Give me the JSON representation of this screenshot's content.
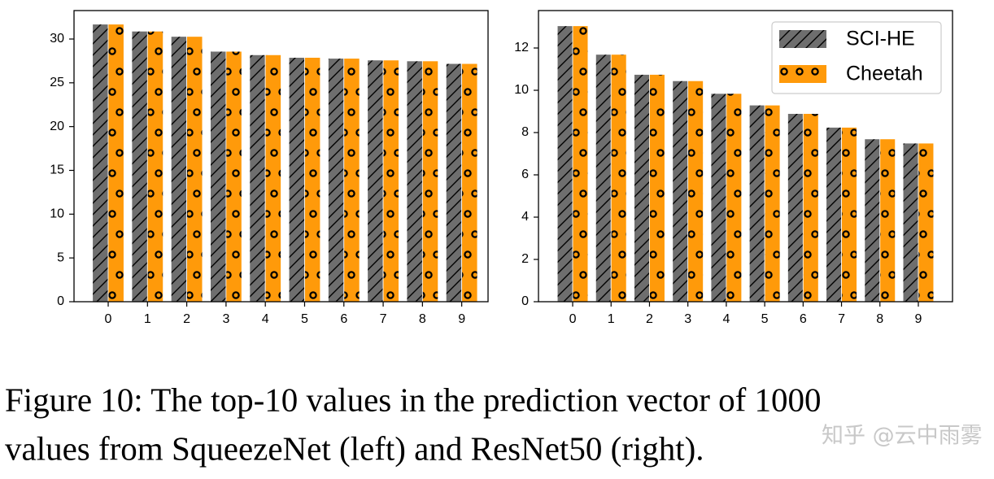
{
  "chart_data": [
    {
      "type": "bar",
      "x": [
        0,
        1,
        2,
        3,
        4,
        5,
        6,
        7,
        8,
        9
      ],
      "series": [
        {
          "color": "#6e6e6e",
          "hatch": "/",
          "values": [
            31.7,
            30.9,
            30.3,
            28.6,
            28.2,
            27.9,
            27.8,
            27.6,
            27.5,
            27.2
          ]
        },
        {
          "color": "#ff9a0a",
          "hatch": "o",
          "values": [
            31.7,
            30.9,
            30.3,
            28.6,
            28.2,
            27.9,
            27.8,
            27.6,
            27.5,
            27.2
          ]
        }
      ],
      "xlim": [
        -0.87,
        9.67
      ],
      "xticks": [
        0,
        1,
        2,
        3,
        4,
        5,
        6,
        7,
        8,
        9
      ],
      "ylim": [
        0,
        33.25
      ],
      "yticks": [
        0,
        5,
        10,
        15,
        20,
        25,
        30
      ]
    },
    {
      "type": "bar",
      "x": [
        0,
        1,
        2,
        3,
        4,
        5,
        6,
        7,
        8,
        9
      ],
      "series": [
        {
          "name": "SCI-HE",
          "color": "#6e6e6e",
          "hatch": "/",
          "values": [
            13.05,
            11.7,
            10.75,
            10.45,
            9.85,
            9.3,
            8.9,
            8.25,
            7.7,
            7.5
          ]
        },
        {
          "name": "Cheetah",
          "color": "#ff9a0a",
          "hatch": "o",
          "values": [
            13.05,
            11.7,
            10.75,
            10.45,
            9.85,
            9.3,
            8.9,
            8.25,
            7.7,
            7.5
          ]
        }
      ],
      "xlim": [
        -0.89,
        9.89
      ],
      "xticks": [
        0,
        1,
        2,
        3,
        4,
        5,
        6,
        7,
        8,
        9
      ],
      "ylim": [
        0,
        13.77
      ],
      "yticks": [
        0,
        2,
        4,
        6,
        8,
        10,
        12
      ],
      "legend": "upper right"
    }
  ],
  "caption": [
    "Figure 10: The top-10 values in the prediction vector of 1000",
    "values from SqueezeNet (left) and ResNet50 (right)."
  ],
  "watermark": "知乎 @云中雨雾"
}
